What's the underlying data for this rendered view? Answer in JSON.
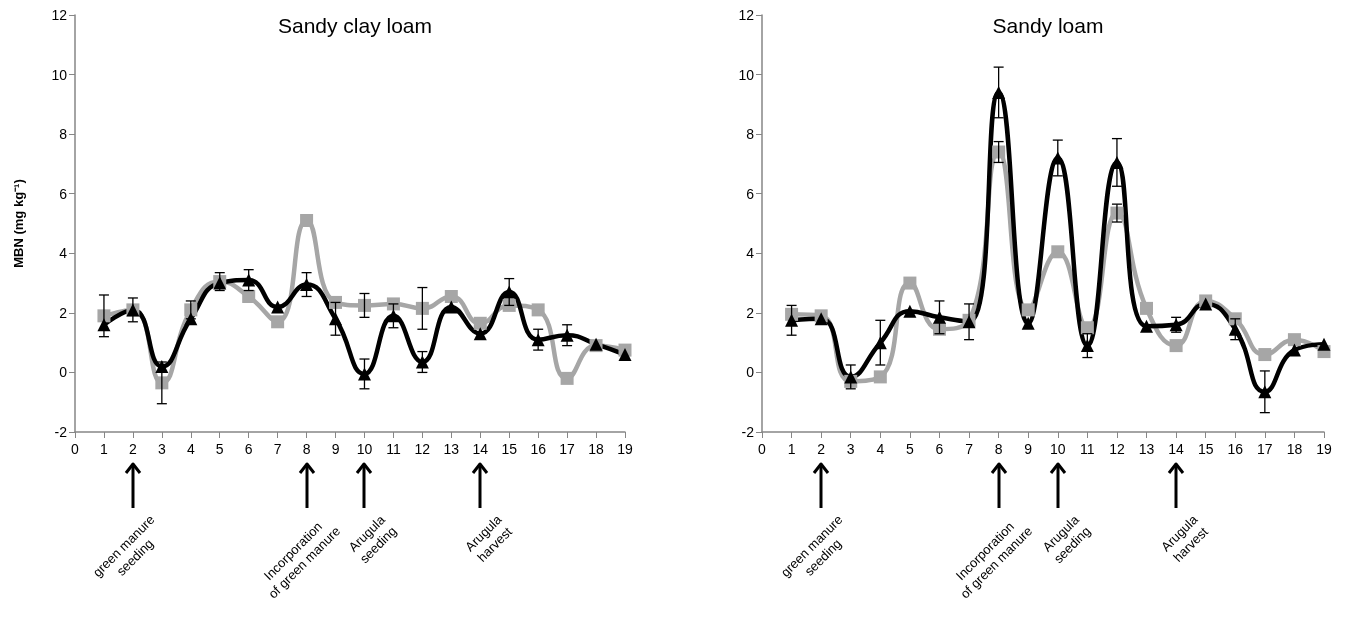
{
  "chart_data": [
    {
      "type": "line",
      "title": "Sandy clay loam",
      "ylabel": "MBN (mg kg⁻¹)",
      "x": [
        1,
        2,
        3,
        4,
        5,
        6,
        7,
        8,
        9,
        10,
        11,
        12,
        13,
        14,
        15,
        16,
        17,
        18,
        19
      ],
      "xlim": [
        0,
        19
      ],
      "xticks": [
        0,
        1,
        2,
        3,
        4,
        5,
        6,
        7,
        8,
        9,
        10,
        11,
        12,
        13,
        14,
        15,
        16,
        17,
        18,
        19
      ],
      "ylim": [
        -2,
        12
      ],
      "yticks": [
        -2,
        0,
        2,
        4,
        6,
        8,
        10,
        12
      ],
      "series": [
        {
          "color": "#a6a6a6",
          "marker": "square",
          "values": [
            1.9,
            2.1,
            -0.35,
            2.1,
            3.05,
            2.55,
            1.7,
            5.1,
            2.35,
            2.25,
            2.3,
            2.15,
            2.55,
            1.65,
            2.25,
            2.1,
            -0.2,
            0.9,
            0.75
          ],
          "errors": [
            0.7,
            0.4,
            0.7,
            0.3,
            0.3,
            null,
            null,
            null,
            null,
            0.4,
            null,
            0.7,
            null,
            null,
            null,
            null,
            null,
            null,
            null
          ]
        },
        {
          "color": "#000000",
          "marker": "triangle",
          "values": [
            1.6,
            2.1,
            0.2,
            1.8,
            3.0,
            3.1,
            2.2,
            2.95,
            1.8,
            -0.05,
            1.9,
            0.35,
            2.2,
            1.3,
            2.7,
            1.1,
            1.25,
            0.95,
            0.6
          ],
          "errors": [
            null,
            null,
            null,
            null,
            null,
            0.35,
            null,
            0.4,
            0.55,
            0.5,
            0.4,
            0.35,
            null,
            null,
            0.45,
            0.35,
            0.35,
            null,
            null
          ]
        }
      ],
      "ref_lines": [
        {
          "axis": "x",
          "value": 2,
          "label": "green manure\nseeding"
        },
        {
          "axis": "x",
          "value": 8,
          "label": "Incorporation\nof green manure"
        },
        {
          "axis": "x",
          "value": 10,
          "label": "Arugula\nseeding"
        },
        {
          "axis": "x",
          "value": 14,
          "label": "Arugula\nharvest"
        }
      ]
    },
    {
      "type": "line",
      "title": "Sandy loam",
      "x": [
        1,
        2,
        3,
        4,
        5,
        6,
        7,
        8,
        9,
        10,
        11,
        12,
        13,
        14,
        15,
        16,
        17,
        18,
        19
      ],
      "xlim": [
        0,
        19
      ],
      "xticks": [
        0,
        1,
        2,
        3,
        4,
        5,
        6,
        7,
        8,
        9,
        10,
        11,
        12,
        13,
        14,
        15,
        16,
        17,
        18,
        19
      ],
      "ylim": [
        -2,
        12
      ],
      "yticks": [
        -2,
        0,
        2,
        4,
        6,
        8,
        10,
        12
      ],
      "series": [
        {
          "color": "#a6a6a6",
          "marker": "square",
          "values": [
            1.95,
            1.9,
            -0.3,
            -0.15,
            3.0,
            1.45,
            1.75,
            7.4,
            2.1,
            4.05,
            1.5,
            5.35,
            2.15,
            0.9,
            2.4,
            1.8,
            0.6,
            1.1,
            0.7
          ],
          "errors": [
            null,
            null,
            null,
            null,
            null,
            null,
            null,
            0.35,
            null,
            null,
            null,
            0.3,
            null,
            null,
            null,
            null,
            null,
            null,
            null
          ]
        },
        {
          "color": "#000000",
          "marker": "triangle",
          "values": [
            1.75,
            1.8,
            -0.15,
            1.0,
            2.05,
            1.85,
            1.7,
            9.4,
            1.65,
            7.2,
            0.9,
            7.05,
            1.55,
            1.6,
            2.3,
            1.45,
            -0.65,
            0.75,
            0.95
          ],
          "errors": [
            0.5,
            null,
            0.4,
            0.75,
            null,
            0.55,
            0.6,
            0.85,
            null,
            0.6,
            0.4,
            0.8,
            null,
            0.25,
            null,
            0.35,
            0.7,
            null,
            null
          ]
        }
      ],
      "ref_lines": [
        {
          "axis": "x",
          "value": 2,
          "label": "green manure\nseeding"
        },
        {
          "axis": "x",
          "value": 8,
          "label": "Incorporation\nof green manure"
        },
        {
          "axis": "x",
          "value": 10,
          "label": "Arugula\nseeding"
        },
        {
          "axis": "x",
          "value": 14,
          "label": "Arugula\nharvest"
        }
      ]
    }
  ]
}
